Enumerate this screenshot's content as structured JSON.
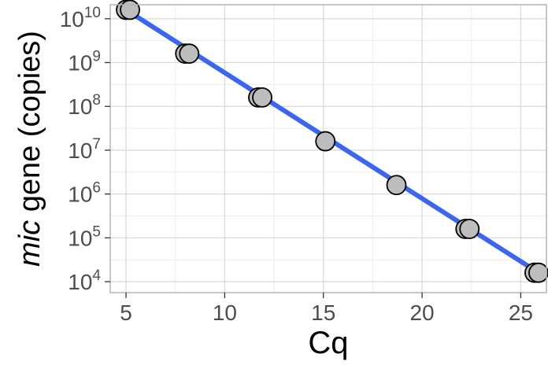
{
  "chart_data": {
    "type": "scatter",
    "xlabel": "Cq",
    "ylabel_italic": "mic",
    "ylabel_rest": " gene (copies)",
    "x_ticks": [
      5,
      10,
      15,
      20,
      25
    ],
    "y_tick_exponents": [
      4,
      5,
      6,
      7,
      8,
      9,
      10
    ],
    "y_tick_base": "10",
    "xlim": [
      4.2,
      26.3
    ],
    "ylim_log10": [
      3.75,
      10.32
    ],
    "y_scale": "log10",
    "grid": true,
    "points": [
      {
        "x": 5.0,
        "y": 16000000000
      },
      {
        "x": 5.2,
        "y": 16000000000
      },
      {
        "x": 8.0,
        "y": 1600000000
      },
      {
        "x": 8.2,
        "y": 1600000000
      },
      {
        "x": 11.7,
        "y": 160000000
      },
      {
        "x": 11.9,
        "y": 160000000
      },
      {
        "x": 15.1,
        "y": 16000000
      },
      {
        "x": 18.7,
        "y": 1600000
      },
      {
        "x": 22.2,
        "y": 160000
      },
      {
        "x": 22.4,
        "y": 160000
      },
      {
        "x": 25.7,
        "y": 16000
      },
      {
        "x": 25.9,
        "y": 16000
      }
    ],
    "fit_line": {
      "x_start": 5.0,
      "x_end": 25.9,
      "log10_y_start": 10.204,
      "log10_y_end": 4.204
    },
    "colors": {
      "point_fill": "#bdbdbd",
      "point_stroke": "#000000",
      "line": "#3a66f0",
      "grid_major": "#d9d9d9",
      "grid_minor": "#ececec",
      "panel_border": "#b3b3b3",
      "tick_text": "#4d4d4d"
    }
  }
}
